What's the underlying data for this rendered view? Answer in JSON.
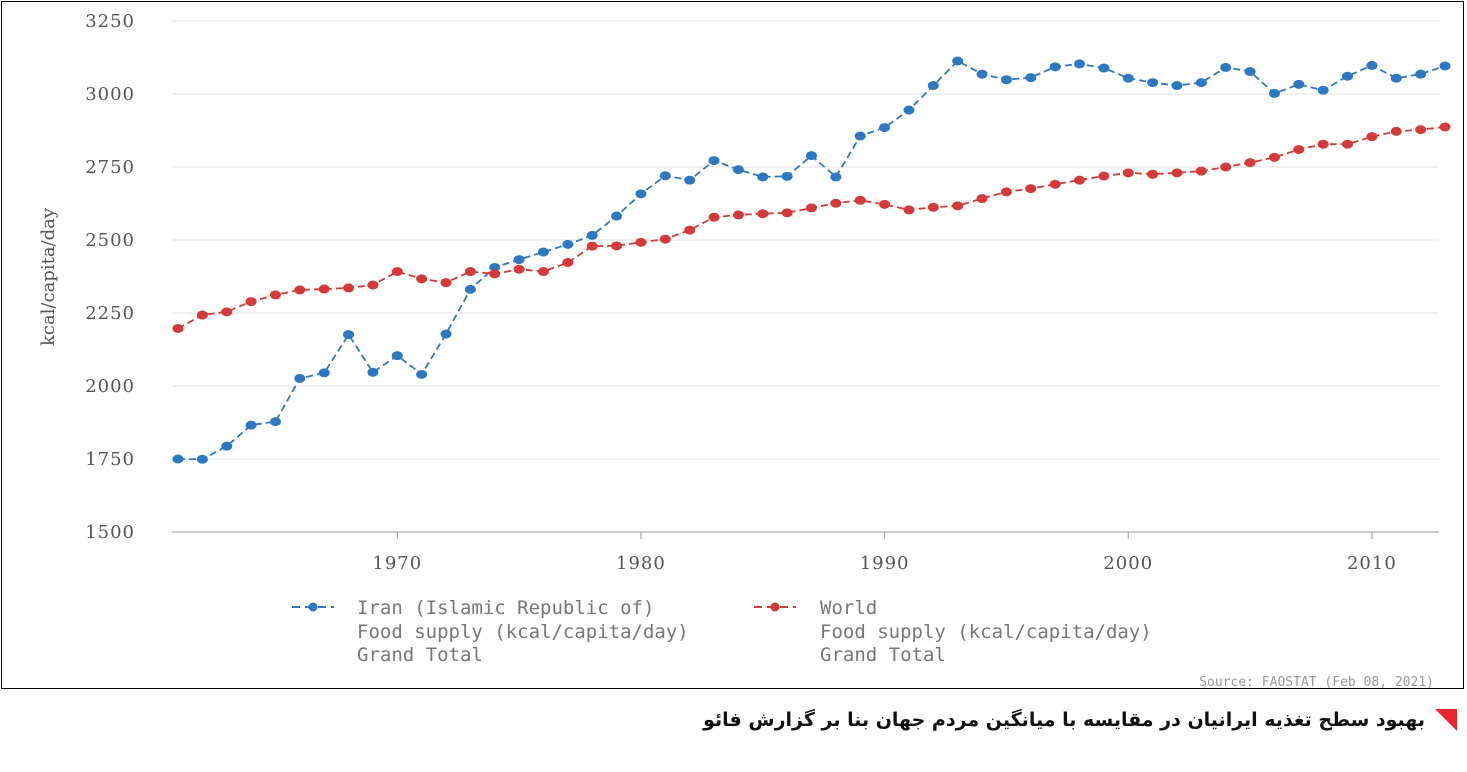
{
  "chart_data": {
    "type": "line",
    "ylabel": "kcal/capita/day",
    "xlim": [
      1961,
      2013
    ],
    "ylim": [
      1500,
      3250
    ],
    "x_ticks": [
      1970,
      1980,
      1990,
      2000,
      2010
    ],
    "y_ticks": [
      1500,
      1750,
      2000,
      2250,
      2500,
      2750,
      3000,
      3250
    ],
    "grid": true,
    "legend_position": "bottom",
    "x": [
      1961,
      1962,
      1963,
      1964,
      1965,
      1966,
      1967,
      1968,
      1969,
      1970,
      1971,
      1972,
      1973,
      1974,
      1975,
      1976,
      1977,
      1978,
      1979,
      1980,
      1981,
      1982,
      1983,
      1984,
      1985,
      1986,
      1987,
      1988,
      1989,
      1990,
      1991,
      1992,
      1993,
      1994,
      1995,
      1996,
      1997,
      1998,
      1999,
      2000,
      2001,
      2002,
      2003,
      2004,
      2005,
      2006,
      2007,
      2008,
      2009,
      2010,
      2011,
      2012,
      2013
    ],
    "series": [
      {
        "legend": [
          "Iran (Islamic Republic of)",
          "Food supply (kcal/capita/day)",
          "Grand Total"
        ],
        "color": "#2e78c2",
        "values": [
          1750,
          1749,
          1794,
          1866,
          1878,
          2026,
          2045,
          2176,
          2047,
          2104,
          2040,
          2178,
          2331,
          2406,
          2433,
          2459,
          2485,
          2516,
          2582,
          2658,
          2720,
          2705,
          2772,
          2741,
          2716,
          2718,
          2789,
          2716,
          2856,
          2885,
          2945,
          3029,
          3113,
          3068,
          3049,
          3056,
          3093,
          3103,
          3089,
          3054,
          3039,
          3029,
          3039,
          3091,
          3077,
          3002,
          3033,
          3013,
          3061,
          3098,
          3054,
          3068,
          3096
        ]
      },
      {
        "legend": [
          "World",
          "Food supply (kcal/capita/day)",
          "Grand Total"
        ],
        "color": "#d43a3a",
        "values": [
          2197,
          2243,
          2254,
          2289,
          2312,
          2329,
          2332,
          2336,
          2346,
          2392,
          2367,
          2354,
          2392,
          2384,
          2400,
          2392,
          2423,
          2479,
          2480,
          2492,
          2503,
          2534,
          2578,
          2586,
          2590,
          2593,
          2610,
          2626,
          2636,
          2622,
          2603,
          2612,
          2617,
          2642,
          2665,
          2676,
          2691,
          2705,
          2719,
          2730,
          2725,
          2730,
          2736,
          2750,
          2765,
          2783,
          2810,
          2828,
          2828,
          2854,
          2872,
          2878,
          2887
        ]
      }
    ],
    "source": "Source: FAOSTAT (Feb 08, 2021)"
  },
  "caption": "بهبود سطح تغذیه ایرانیان در مقایسه با میانگین مردم جهان بنا بر گزارش فائو",
  "caption_mark_color": "#e8242c"
}
